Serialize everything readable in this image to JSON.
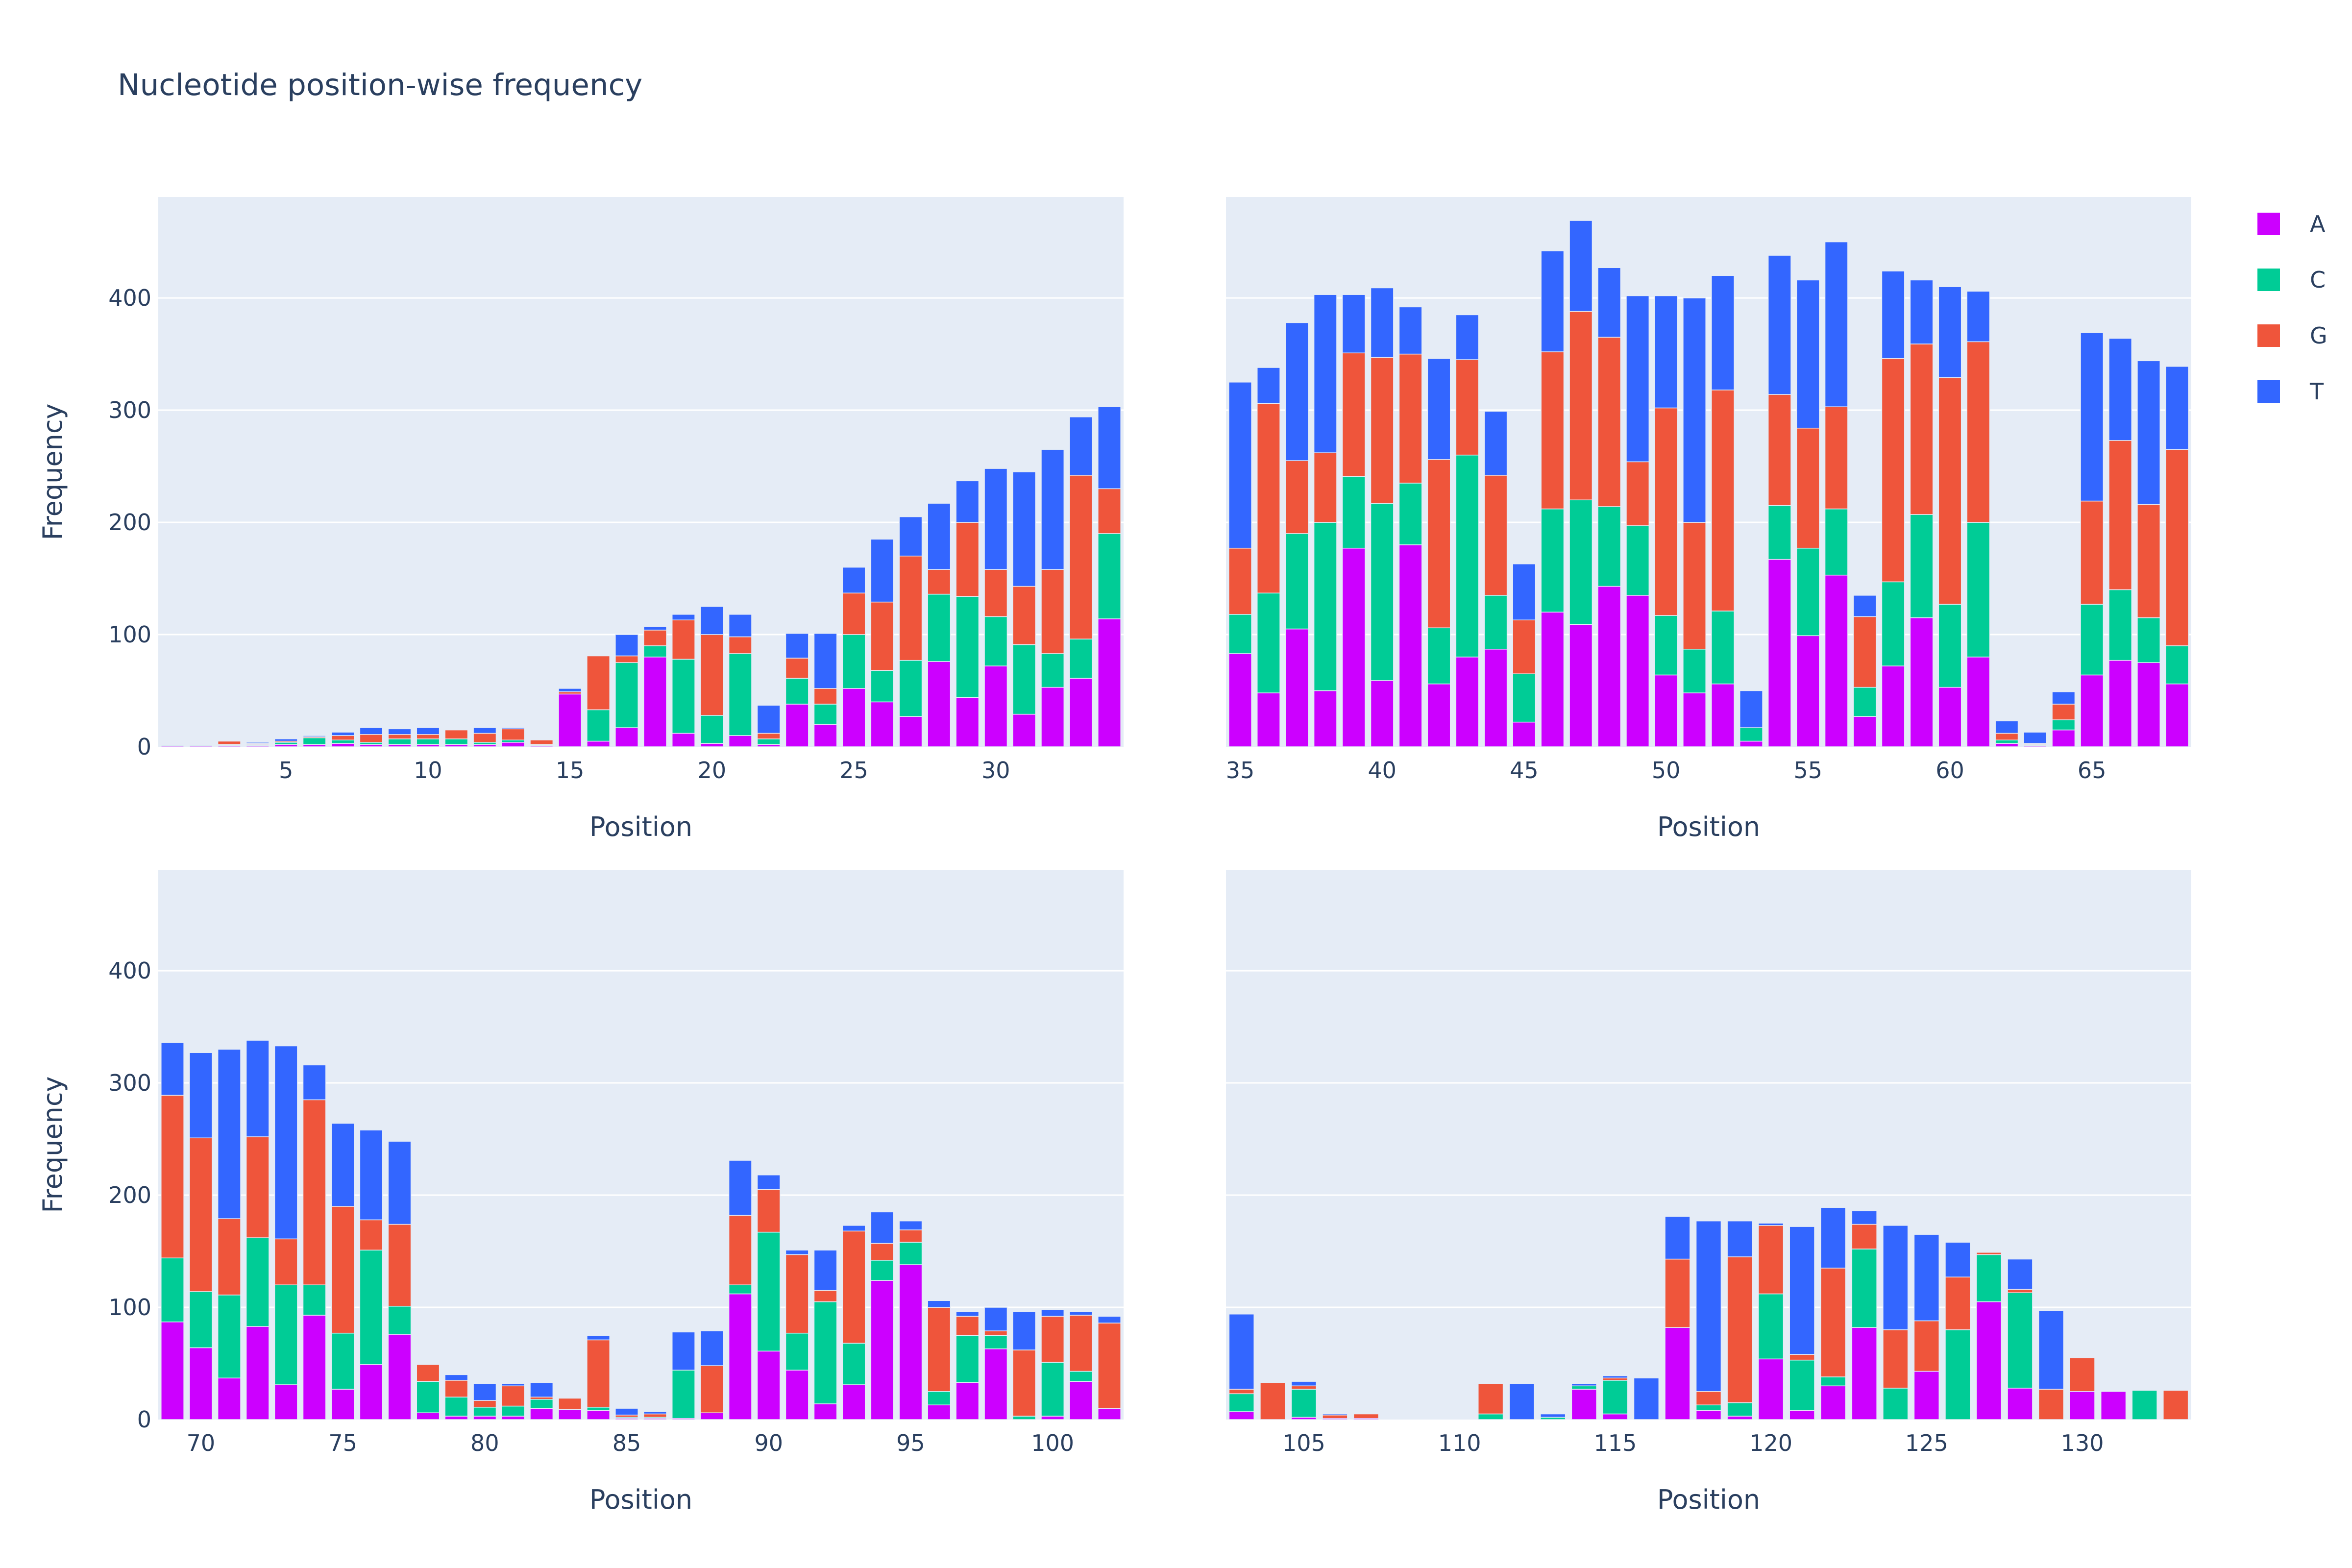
{
  "chart_data": {
    "type": "bar",
    "barmode": "stack",
    "title": "Nucleotide position-wise frequency",
    "colors": {
      "A": "#cc00ff",
      "C": "#00cc96",
      "G": "#ef553b",
      "T": "#3366ff"
    },
    "legend": {
      "placement": "top-right",
      "entries": [
        "A",
        "C",
        "G",
        "T"
      ]
    },
    "grid": true,
    "ylim": [
      0,
      490
    ],
    "yticks": [
      0,
      100,
      200,
      300,
      400
    ],
    "panels": [
      {
        "xlabel": "Position",
        "ylabel": "Frequency",
        "xlim": [
          0.5,
          34.5
        ],
        "xticks": [
          5,
          10,
          15,
          20,
          25,
          30
        ],
        "x": [
          1,
          2,
          3,
          4,
          5,
          6,
          7,
          8,
          9,
          10,
          11,
          12,
          13,
          14,
          15,
          16,
          17,
          18,
          19,
          20,
          21,
          22,
          23,
          24,
          25,
          26,
          27,
          28,
          29,
          30,
          31,
          32,
          33,
          34
        ],
        "series": [
          {
            "name": "A",
            "values": [
              1,
              1,
              1,
              1,
              2,
              2,
              3,
              2,
              2,
              2,
              2,
              2,
              4,
              1,
              47,
              5,
              17,
              80,
              12,
              3,
              10,
              2,
              38,
              20,
              52,
              40,
              27,
              76,
              44,
              72,
              29,
              53,
              61,
              114
            ]
          },
          {
            "name": "C",
            "values": [
              1,
              1,
              1,
              1,
              2,
              6,
              3,
              2,
              5,
              5,
              5,
              2,
              2,
              1,
              0,
              28,
              58,
              10,
              66,
              25,
              73,
              5,
              23,
              18,
              48,
              28,
              50,
              60,
              90,
              44,
              62,
              30,
              35,
              76
            ]
          },
          {
            "name": "G",
            "values": [
              0,
              0,
              3,
              1,
              1,
              1,
              4,
              7,
              4,
              4,
              8,
              8,
              10,
              4,
              2,
              48,
              6,
              14,
              35,
              72,
              15,
              5,
              18,
              14,
              37,
              61,
              93,
              22,
              66,
              42,
              52,
              75,
              146,
              40
            ]
          },
          {
            "name": "T",
            "values": [
              0,
              0,
              0,
              1,
              2,
              1,
              3,
              6,
              5,
              6,
              0,
              5,
              1,
              0,
              3,
              0,
              19,
              3,
              5,
              25,
              20,
              25,
              22,
              49,
              23,
              56,
              35,
              59,
              37,
              90,
              102,
              107,
              52,
              73
            ]
          }
        ]
      },
      {
        "xlabel": "Position",
        "ylabel": "",
        "xlim": [
          34.5,
          68.5
        ],
        "xticks": [
          35,
          40,
          45,
          50,
          55,
          60,
          65
        ],
        "x": [
          35,
          36,
          37,
          38,
          39,
          40,
          41,
          42,
          43,
          44,
          45,
          46,
          47,
          48,
          49,
          50,
          51,
          52,
          53,
          54,
          55,
          56,
          57,
          58,
          59,
          60,
          61,
          62,
          63,
          64,
          65,
          66,
          67,
          68
        ],
        "series": [
          {
            "name": "A",
            "values": [
              83,
              48,
              105,
              50,
              177,
              59,
              180,
              56,
              80,
              87,
              22,
              120,
              109,
              143,
              135,
              64,
              48,
              56,
              5,
              167,
              99,
              153,
              27,
              72,
              115,
              53,
              80,
              3,
              1,
              15,
              64,
              77,
              75,
              56
            ]
          },
          {
            "name": "C",
            "values": [
              35,
              89,
              85,
              150,
              64,
              158,
              55,
              50,
              180,
              48,
              43,
              92,
              111,
              71,
              62,
              53,
              39,
              65,
              12,
              48,
              78,
              59,
              26,
              75,
              92,
              74,
              120,
              3,
              1,
              9,
              63,
              63,
              40,
              34
            ]
          },
          {
            "name": "G",
            "values": [
              59,
              169,
              65,
              62,
              110,
              130,
              115,
              150,
              85,
              107,
              48,
              140,
              168,
              151,
              57,
              185,
              113,
              197,
              0,
              99,
              107,
              91,
              63,
              199,
              152,
              202,
              161,
              6,
              1,
              14,
              92,
              133,
              101,
              175
            ]
          },
          {
            "name": "T",
            "values": [
              148,
              32,
              123,
              141,
              52,
              62,
              42,
              90,
              40,
              57,
              50,
              90,
              81,
              62,
              148,
              100,
              200,
              102,
              33,
              124,
              132,
              147,
              19,
              78,
              57,
              81,
              45,
              11,
              10,
              11,
              150,
              91,
              128,
              74
            ]
          }
        ]
      },
      {
        "xlabel": "Position",
        "ylabel": "Frequency",
        "xlim": [
          68.5,
          102.5
        ],
        "xticks": [
          70,
          75,
          80,
          85,
          90,
          95,
          100
        ],
        "x": [
          69,
          70,
          71,
          72,
          73,
          74,
          75,
          76,
          77,
          78,
          79,
          80,
          81,
          82,
          83,
          84,
          85,
          86,
          87,
          88,
          89,
          90,
          91,
          92,
          93,
          94,
          95,
          96,
          97,
          98,
          99,
          100,
          101,
          102
        ],
        "series": [
          {
            "name": "A",
            "values": [
              87,
              64,
              37,
              83,
              31,
              93,
              27,
              49,
              76,
              6,
              3,
              3,
              3,
              10,
              9,
              8,
              1,
              1,
              1,
              6,
              112,
              61,
              44,
              14,
              31,
              124,
              138,
              13,
              33,
              63,
              0,
              3,
              34,
              10
            ]
          },
          {
            "name": "C",
            "values": [
              57,
              50,
              74,
              79,
              89,
              27,
              50,
              102,
              25,
              28,
              17,
              8,
              9,
              8,
              0,
              3,
              1,
              1,
              43,
              0,
              8,
              106,
              33,
              91,
              37,
              18,
              20,
              12,
              42,
              12,
              3,
              48,
              9,
              0
            ]
          },
          {
            "name": "G",
            "values": [
              145,
              137,
              68,
              90,
              41,
              165,
              113,
              27,
              73,
              15,
              15,
              6,
              18,
              2,
              10,
              60,
              2,
              3,
              0,
              42,
              62,
              38,
              70,
              10,
              100,
              15,
              11,
              75,
              17,
              4,
              59,
              41,
              50,
              76
            ]
          },
          {
            "name": "T",
            "values": [
              47,
              76,
              151,
              86,
              172,
              31,
              74,
              80,
              74,
              0,
              5,
              15,
              2,
              13,
              0,
              4,
              6,
              2,
              34,
              31,
              49,
              13,
              4,
              36,
              5,
              28,
              8,
              6,
              4,
              21,
              34,
              6,
              3,
              6
            ]
          }
        ]
      },
      {
        "xlabel": "Position",
        "ylabel": "",
        "xlim": [
          102.5,
          133.5
        ],
        "xticks": [
          105,
          110,
          115,
          120,
          125,
          130
        ],
        "x": [
          103,
          104,
          105,
          106,
          107,
          108,
          109,
          110,
          111,
          112,
          113,
          114,
          115,
          116,
          117,
          118,
          119,
          120,
          121,
          122,
          123,
          124,
          125,
          126,
          127,
          128,
          129,
          130,
          131,
          132,
          133
        ],
        "series": [
          {
            "name": "A",
            "values": [
              7,
              0,
              2,
              1,
              1,
              0,
              0,
              0,
              0,
              0,
              0,
              27,
              5,
              0,
              82,
              8,
              3,
              54,
              8,
              30,
              82,
              0,
              43,
              0,
              105,
              28,
              0,
              25,
              25,
              0,
              0
            ]
          },
          {
            "name": "C",
            "values": [
              16,
              0,
              25,
              0,
              0,
              0,
              0,
              0,
              5,
              0,
              2,
              3,
              30,
              0,
              0,
              5,
              12,
              58,
              45,
              8,
              70,
              28,
              0,
              80,
              42,
              85,
              0,
              0,
              0,
              26,
              0
            ]
          },
          {
            "name": "G",
            "values": [
              4,
              33,
              3,
              3,
              4,
              0,
              0,
              0,
              27,
              0,
              0,
              0,
              2,
              0,
              61,
              12,
              130,
              61,
              5,
              97,
              22,
              52,
              45,
              47,
              2,
              3,
              27,
              30,
              0,
              0,
              26
            ]
          },
          {
            "name": "T",
            "values": [
              67,
              0,
              4,
              1,
              0,
              0,
              0,
              0,
              0,
              32,
              3,
              2,
              2,
              37,
              38,
              152,
              32,
              2,
              114,
              54,
              12,
              93,
              77,
              31,
              0,
              27,
              70,
              0,
              0,
              0,
              0
            ]
          }
        ]
      }
    ]
  }
}
